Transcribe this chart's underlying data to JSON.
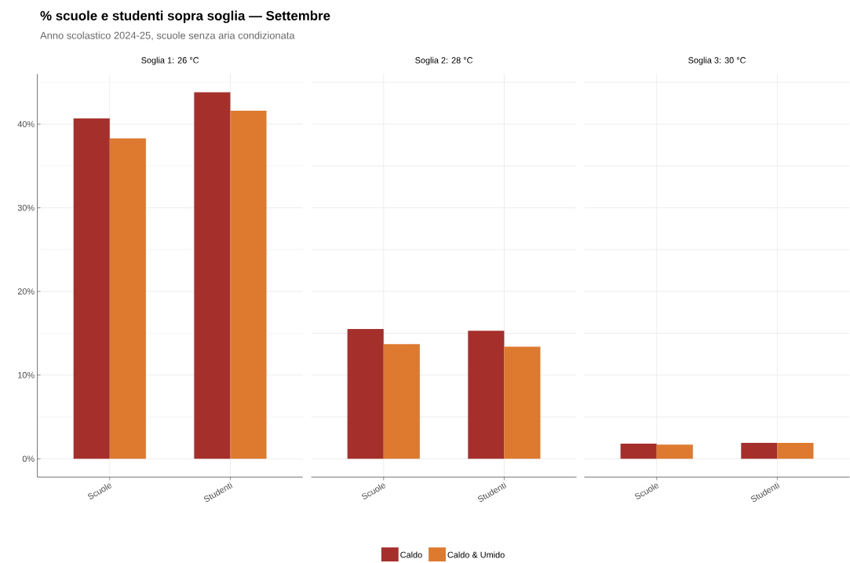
{
  "chart_data": [
    {
      "type": "bar",
      "title": "Soglia 1: 26 °C",
      "annotations": [
        "% scuole e studenti sopra soglia — Settembre",
        "Anno scolastico 2024-25, scuole senza aria condizionata"
      ],
      "categories": [
        "Scuole",
        "Studenti"
      ],
      "series": [
        {
          "color": "#a52f2b",
          "values": [
            40.7,
            43.8
          ]
        },
        {
          "color": "#de7a30",
          "values": [
            38.3,
            41.6
          ]
        }
      ],
      "ylim": [
        -2.2,
        46
      ],
      "yticks": [
        {
          "value": 0,
          "label": "0%"
        },
        {
          "value": 5,
          "label": null
        },
        {
          "value": 10,
          "label": "10%"
        },
        {
          "value": 15,
          "label": null
        },
        {
          "value": 20,
          "label": "20%"
        },
        {
          "value": 25,
          "label": null
        },
        {
          "value": 30,
          "label": "30%"
        },
        {
          "value": 35,
          "label": null
        },
        {
          "value": 40,
          "label": "40%"
        },
        {
          "value": 45,
          "label": null
        }
      ],
      "grid": true
    },
    {
      "type": "bar",
      "title": "Soglia 2: 28 °C",
      "categories": [
        "Scuole",
        "Studenti"
      ],
      "series": [
        {
          "name": "Caldo",
          "color": "#a52f2b",
          "values": [
            15.5,
            15.3
          ]
        },
        {
          "name": "Caldo & Umido",
          "color": "#de7a30",
          "values": [
            13.7,
            13.4
          ]
        }
      ],
      "ylim": [
        -2.2,
        46
      ],
      "yticks": [
        0,
        5,
        10,
        15,
        20,
        25,
        30,
        35,
        40,
        45
      ],
      "grid": true,
      "tick_labels": "x",
      "legend": "bottom"
    },
    {
      "type": "bar",
      "title": "Soglia 3: 30 °C",
      "categories": [
        "Scuole",
        "Studenti"
      ],
      "series": [
        {
          "color": "#a52f2b",
          "values": [
            1.8,
            1.9
          ]
        },
        {
          "color": "#de7a30",
          "values": [
            1.7,
            1.9
          ]
        }
      ],
      "ylim": [
        -2.2,
        46
      ],
      "yticks": [
        0,
        5,
        10,
        15,
        20,
        25,
        30,
        35,
        40,
        45
      ],
      "grid": true,
      "tick_labels": "x"
    }
  ]
}
